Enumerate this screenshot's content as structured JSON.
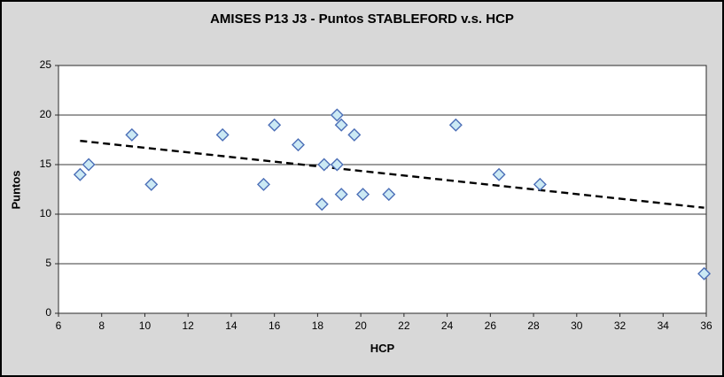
{
  "title": "AMISES P13 J3 - Puntos STABLEFORD v.s. HCP",
  "colors": {
    "chart_background": "#D8D8D8",
    "plot_background": "#FFFFFF",
    "gridline": "#3A3A3A",
    "axis_line": "#2A2A2A",
    "marker_fill": "#CBE9F4",
    "marker_stroke": "#4C6FB7",
    "trendline": "#000000",
    "text": "#000000"
  },
  "chart_data": {
    "type": "scatter",
    "title": "AMISES P13 J3 - Puntos STABLEFORD v.s. HCP",
    "xlabel": "HCP",
    "ylabel": "Puntos",
    "xlim": [
      6,
      36
    ],
    "ylim": [
      0,
      25
    ],
    "x_tick_step": 2,
    "y_tick_step": 5,
    "grid": "horizontal",
    "legend_position": "none",
    "marker_shape": "diamond",
    "points": [
      [
        7.0,
        14
      ],
      [
        7.4,
        15
      ],
      [
        9.4,
        18
      ],
      [
        10.3,
        13
      ],
      [
        13.6,
        18
      ],
      [
        15.5,
        13
      ],
      [
        16.0,
        19
      ],
      [
        17.1,
        17
      ],
      [
        18.2,
        11
      ],
      [
        18.3,
        15
      ],
      [
        18.9,
        15
      ],
      [
        18.9,
        20
      ],
      [
        19.1,
        12
      ],
      [
        19.1,
        19
      ],
      [
        19.7,
        18
      ],
      [
        20.1,
        12
      ],
      [
        21.3,
        12
      ],
      [
        24.4,
        19
      ],
      [
        26.4,
        14
      ],
      [
        28.3,
        13
      ],
      [
        35.9,
        4
      ]
    ],
    "trendline": {
      "style": "dashed",
      "x1": 7.0,
      "y1": 17.4,
      "x2": 35.9,
      "y2": 10.65
    }
  }
}
